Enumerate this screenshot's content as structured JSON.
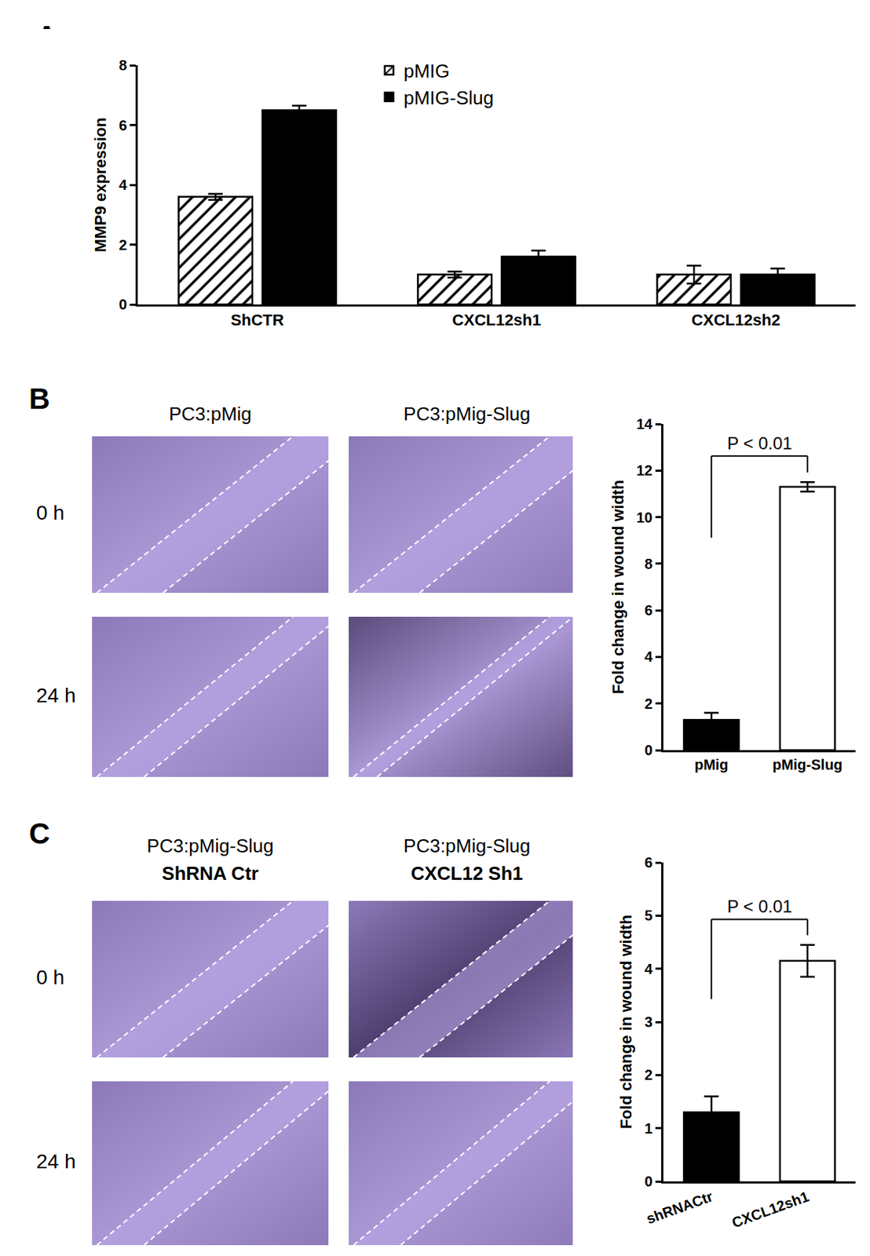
{
  "panel_labels": [
    "A",
    "B",
    "C"
  ],
  "chart_data": [
    {
      "type": "bar",
      "ylabel": "MMP9 expression",
      "categories": [
        "ShCTR",
        "CXCL12sh1",
        "CXCL12sh2"
      ],
      "series": [
        {
          "name": "pMIG",
          "color": "#ffffff",
          "values": [
            3.6,
            1.0,
            1.0
          ],
          "errors": [
            0.1,
            0.1,
            0.3
          ]
        },
        {
          "name": "pMIG-Slug",
          "color": "#000000",
          "values": [
            6.5,
            1.6,
            1.0
          ],
          "errors": [
            0.15,
            0.2,
            0.2
          ]
        }
      ],
      "ylim": [
        0,
        8
      ],
      "yticks": [
        0,
        2,
        4,
        6,
        8
      ],
      "legend": "top",
      "grid": false
    },
    {
      "type": "bar",
      "ylabel": "Fold change in wound width",
      "categories": [
        "pMig",
        "pMig-Slug"
      ],
      "values": [
        1.3,
        11.3
      ],
      "errors": [
        0.3,
        0.2
      ],
      "colors": [
        "#000000",
        "#ffffff"
      ],
      "ylim": [
        0,
        14
      ],
      "yticks": [
        0,
        2,
        4,
        6,
        8,
        10,
        12,
        14
      ],
      "annotations": [
        "P < 0.01"
      ],
      "grid": false
    },
    {
      "type": "bar",
      "ylabel": "Fold change in wound width",
      "categories": [
        "shRNACtr",
        "CXCL12sh1"
      ],
      "values": [
        1.3,
        4.15
      ],
      "errors": [
        0.3,
        0.3
      ],
      "colors": [
        "#000000",
        "#ffffff"
      ],
      "ylim": [
        0,
        6
      ],
      "yticks": [
        0,
        1,
        2,
        3,
        4,
        5,
        6
      ],
      "annotations": [
        "P < 0.01"
      ],
      "grid": false
    }
  ],
  "image_panels": [
    {
      "panel": "B",
      "columns": [
        [
          "PC3:pMig"
        ],
        [
          "PC3:pMig-Slug"
        ]
      ],
      "rows": [
        "0 h",
        "24 h"
      ]
    },
    {
      "panel": "C",
      "columns": [
        [
          "PC3:pMig-Slug",
          "ShRNA Ctr"
        ],
        [
          "PC3:pMig-Slug",
          "CXCL12 Sh1"
        ]
      ],
      "rows": [
        "0 h",
        "24 h"
      ]
    }
  ]
}
